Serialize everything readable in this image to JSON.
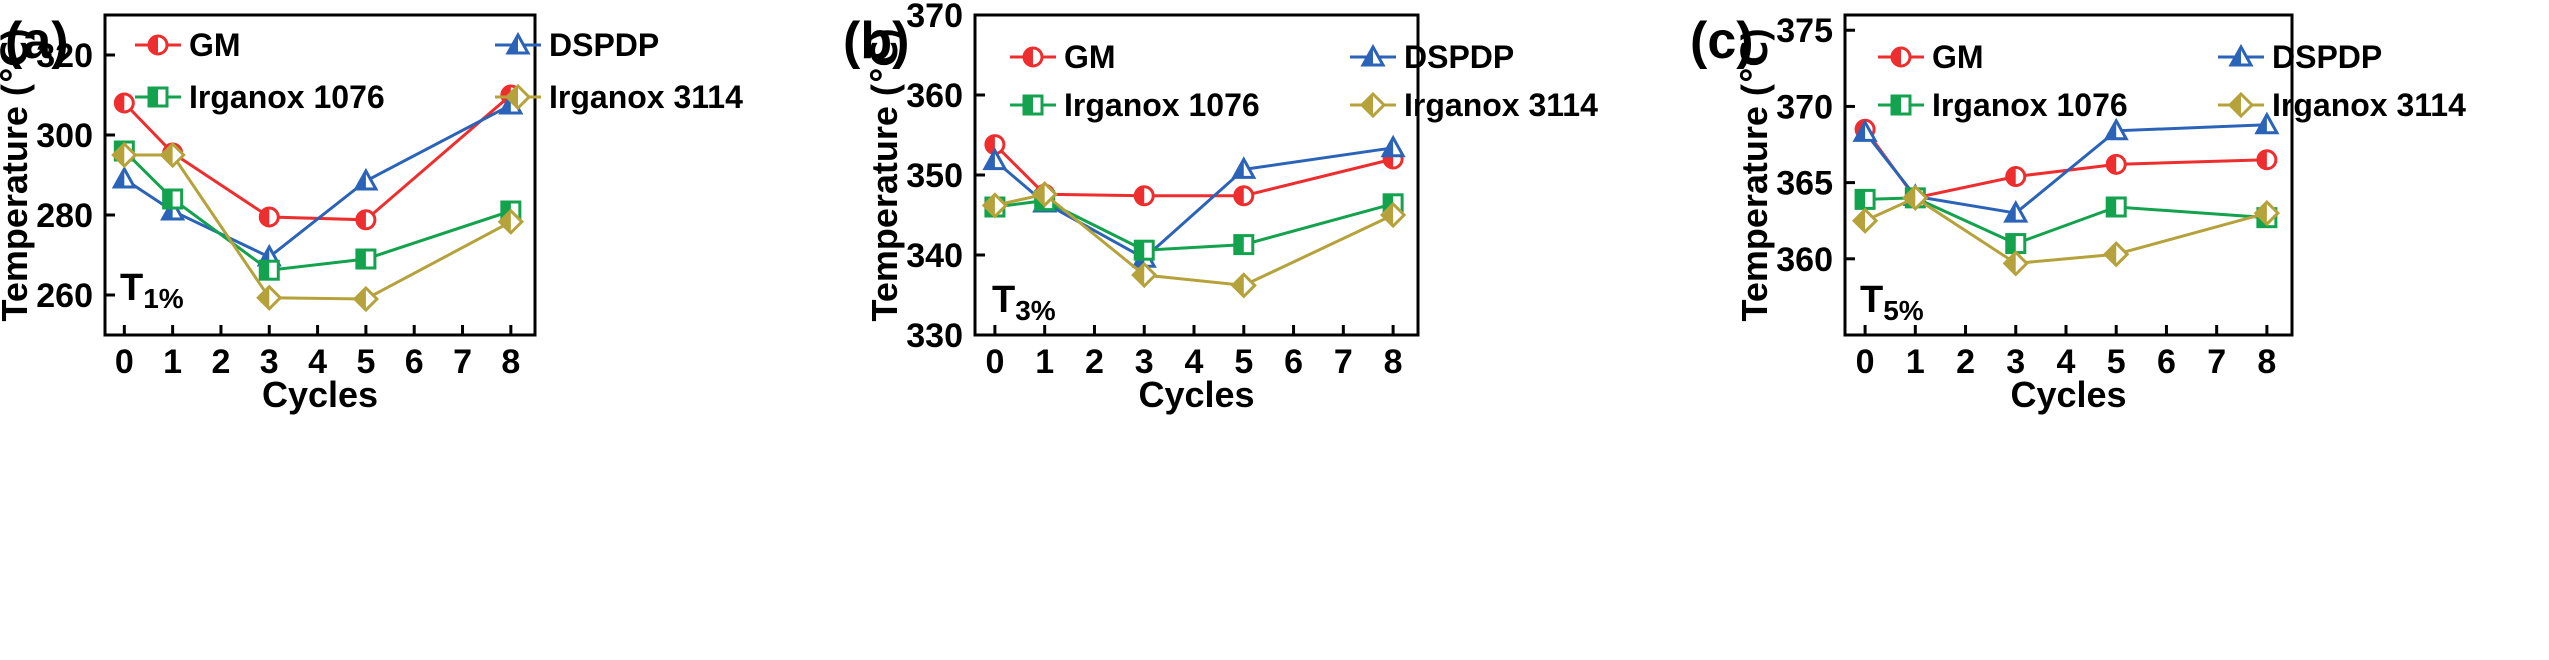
{
  "chart_data": [
    {
      "panel": "(a)",
      "type": "line",
      "xlabel": "Cycles",
      "ylabel": "Temperature (℃)",
      "label_main": "T",
      "label_sub": "1%",
      "xlim": [
        -0.4,
        8.5
      ],
      "ylim": [
        250,
        330
      ],
      "xticks": [
        0,
        1,
        2,
        3,
        4,
        5,
        6,
        7,
        8
      ],
      "yticks": [
        260,
        280,
        300,
        320
      ],
      "x": [
        0,
        1,
        3,
        5,
        8
      ],
      "series": [
        {
          "name": "GM",
          "values": [
            308,
            295.5,
            279.5,
            278.8,
            310
          ]
        },
        {
          "name": "DSPDP",
          "values": [
            289,
            281,
            269.5,
            288.5,
            307.5
          ]
        },
        {
          "name": "Irganox 1076",
          "values": [
            296,
            284,
            266.2,
            269,
            281
          ]
        },
        {
          "name": "Irganox 3114",
          "values": [
            295,
            295,
            259.3,
            259,
            278.3
          ]
        }
      ]
    },
    {
      "panel": "(b)",
      "type": "line",
      "xlabel": "Cycles",
      "ylabel": "Temperature (℃)",
      "label_main": "T",
      "label_sub": "3%",
      "xlim": [
        -0.4,
        8.5
      ],
      "ylim": [
        330,
        370
      ],
      "xticks": [
        0,
        1,
        2,
        3,
        4,
        5,
        6,
        7,
        8
      ],
      "yticks": [
        330,
        340,
        350,
        360,
        370
      ],
      "x": [
        0,
        1,
        3,
        5,
        8
      ],
      "series": [
        {
          "name": "GM",
          "values": [
            353.8,
            347.6,
            347.4,
            347.4,
            352
          ]
        },
        {
          "name": "DSPDP",
          "values": [
            351.8,
            346.5,
            339.6,
            350.7,
            353.4
          ]
        },
        {
          "name": "Irganox 1076",
          "values": [
            346,
            346.8,
            340.6,
            341.3,
            346.4
          ]
        },
        {
          "name": "Irganox 3114",
          "values": [
            346.2,
            347.6,
            337.5,
            336.2,
            345
          ]
        }
      ]
    },
    {
      "panel": "(c)",
      "type": "line",
      "xlabel": "Cycles",
      "ylabel": "Temperature (℃)",
      "label_main": "T",
      "label_sub": "5%",
      "xlim": [
        -0.4,
        8.5
      ],
      "ylim": [
        355,
        376
      ],
      "xticks": [
        0,
        1,
        2,
        3,
        4,
        5,
        6,
        7,
        8
      ],
      "yticks": [
        360,
        365,
        370,
        375
      ],
      "x": [
        0,
        1,
        3,
        5,
        8
      ],
      "series": [
        {
          "name": "GM",
          "values": [
            368.5,
            364,
            365.4,
            366.2,
            366.5
          ]
        },
        {
          "name": "DSPDP",
          "values": [
            368.3,
            364.1,
            363,
            368.4,
            368.8
          ]
        },
        {
          "name": "Irganox 1076",
          "values": [
            363.9,
            364,
            361,
            363.4,
            362.7
          ]
        },
        {
          "name": "Irganox 3114",
          "values": [
            362.5,
            364,
            359.7,
            360.3,
            363
          ]
        }
      ]
    }
  ],
  "series_style": {
    "GM": {
      "color": "#ee2e2e",
      "marker": "circle-half"
    },
    "DSPDP": {
      "color": "#2a63b8",
      "marker": "triangle-half"
    },
    "Irganox 1076": {
      "color": "#13a24d",
      "marker": "square-half"
    },
    "Irganox 3114": {
      "color": "#b5a23a",
      "marker": "diamond-half"
    }
  }
}
